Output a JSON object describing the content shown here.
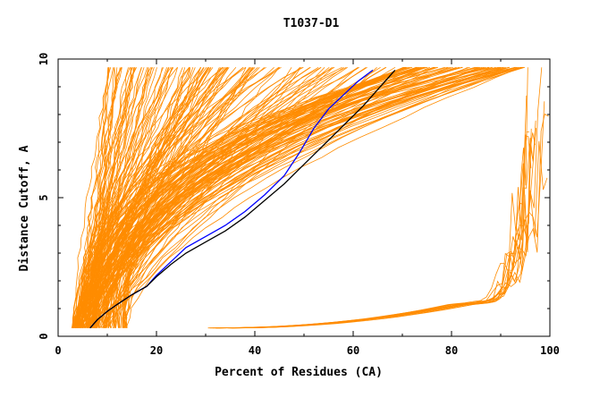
{
  "chart_data": {
    "type": "line",
    "title": "T1037-D1",
    "xlabel": "Percent of Residues (CA)",
    "ylabel": "Distance Cutoff, A",
    "xlim": [
      0,
      100
    ],
    "ylim": [
      0,
      10
    ],
    "x_ticks": [
      "0",
      "20",
      "40",
      "60",
      "80",
      "100"
    ],
    "y_ticks": [
      "0",
      "5",
      "10"
    ],
    "grid": false,
    "legend": "none",
    "colors": {
      "models": "#ff8c00",
      "highlight_a": "#0000ff",
      "highlight_b": "#000000",
      "axis": "#000000"
    },
    "series": [
      {
        "color": "#0000ff",
        "x": [
          6.5,
          8,
          10,
          12,
          15,
          18,
          20,
          23,
          26,
          30,
          34,
          38,
          42,
          46,
          49,
          52,
          55,
          58,
          61,
          64
        ],
        "y": [
          0.3,
          0.6,
          0.9,
          1.15,
          1.5,
          1.8,
          2.2,
          2.7,
          3.2,
          3.6,
          4.0,
          4.5,
          5.1,
          5.8,
          6.6,
          7.5,
          8.2,
          8.7,
          9.2,
          9.6
        ]
      },
      {
        "color": "#000000",
        "x": [
          6.5,
          8,
          10,
          12,
          15,
          18,
          20,
          23,
          26,
          30,
          34,
          38,
          42,
          46,
          50,
          54,
          58,
          62,
          65,
          68.5
        ],
        "y": [
          0.3,
          0.6,
          0.9,
          1.15,
          1.5,
          1.8,
          2.15,
          2.6,
          3.0,
          3.4,
          3.8,
          4.3,
          4.9,
          5.5,
          6.2,
          6.9,
          7.6,
          8.3,
          8.9,
          9.6
        ]
      }
    ]
  }
}
